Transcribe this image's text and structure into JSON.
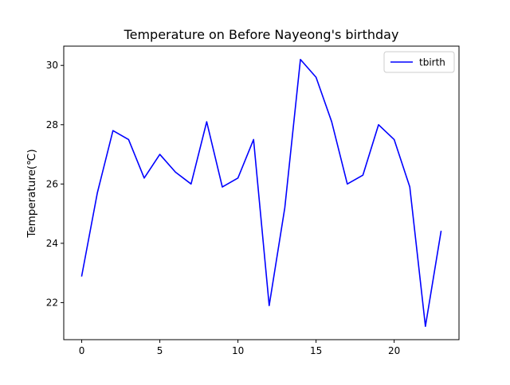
{
  "chart_data": {
    "type": "line",
    "title": "Temperature on Before Nayeong's birthday",
    "xlabel": "",
    "ylabel": "Temperature(℃)",
    "xlim": [
      -1.15,
      24.15
    ],
    "ylim": [
      20.75,
      30.65
    ],
    "xticks": [
      0,
      5,
      10,
      15,
      20
    ],
    "yticks": [
      22,
      24,
      26,
      28,
      30
    ],
    "grid": false,
    "legend_position": "top-right",
    "series": [
      {
        "name": "tbirth",
        "color": "#0000ff",
        "x": [
          0,
          1,
          2,
          3,
          4,
          5,
          6,
          7,
          8,
          9,
          10,
          11,
          12,
          13,
          14,
          15,
          16,
          17,
          18,
          19,
          20,
          21,
          22,
          23
        ],
        "y": [
          22.9,
          25.7,
          27.8,
          27.5,
          26.2,
          27.0,
          26.4,
          26.0,
          28.1,
          25.9,
          26.2,
          27.5,
          21.9,
          25.2,
          30.2,
          29.6,
          28.1,
          26.0,
          26.3,
          28.0,
          27.5,
          25.9,
          21.2,
          24.4
        ]
      }
    ]
  }
}
